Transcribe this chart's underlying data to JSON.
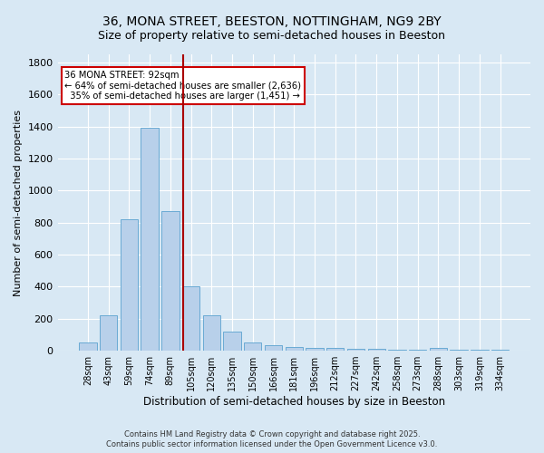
{
  "title_line1": "36, MONA STREET, BEESTON, NOTTINGHAM, NG9 2BY",
  "title_line2": "Size of property relative to semi-detached houses in Beeston",
  "xlabel": "Distribution of semi-detached houses by size in Beeston",
  "ylabel": "Number of semi-detached properties",
  "footnote1": "Contains HM Land Registry data © Crown copyright and database right 2025.",
  "footnote2": "Contains public sector information licensed under the Open Government Licence v3.0.",
  "bar_labels": [
    "28sqm",
    "43sqm",
    "59sqm",
    "74sqm",
    "89sqm",
    "105sqm",
    "120sqm",
    "135sqm",
    "150sqm",
    "166sqm",
    "181sqm",
    "196sqm",
    "212sqm",
    "227sqm",
    "242sqm",
    "258sqm",
    "273sqm",
    "288sqm",
    "303sqm",
    "319sqm",
    "334sqm"
  ],
  "bar_values": [
    50,
    220,
    820,
    1390,
    870,
    400,
    220,
    120,
    50,
    35,
    25,
    20,
    15,
    10,
    10,
    5,
    5,
    15,
    5,
    5,
    5
  ],
  "bar_color": "#b8d0ea",
  "bar_edgecolor": "#6aaad4",
  "annotation_box_text": "36 MONA STREET: 92sqm\n← 64% of semi-detached houses are smaller (2,636)\n  35% of semi-detached houses are larger (1,451) →",
  "annotation_box_color": "#ffffff",
  "annotation_box_edgecolor": "#cc0000",
  "vline_x": 4.62,
  "vline_color": "#aa0000",
  "ylim": [
    0,
    1850
  ],
  "bg_color": "#d8e8f4",
  "plot_bg_color": "#d8e8f4",
  "grid_color": "#ffffff",
  "title_fontsize": 10,
  "subtitle_fontsize": 9
}
